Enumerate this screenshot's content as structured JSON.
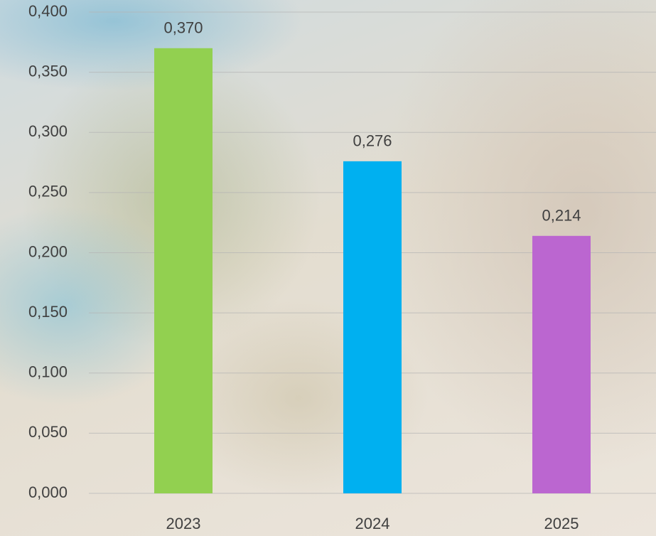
{
  "chart_data": {
    "type": "bar",
    "categories": [
      "2023",
      "2024",
      "2025"
    ],
    "values": [
      0.37,
      0.276,
      0.214
    ],
    "value_labels": [
      "0,370",
      "0,276",
      "0,214"
    ],
    "colors": [
      "#92d050",
      "#00b0f0",
      "#bb66d0"
    ],
    "ylim": [
      0,
      0.4
    ],
    "yticks": [
      {
        "value": 0,
        "label": "0,000"
      },
      {
        "value": 0.05,
        "label": "0,050"
      },
      {
        "value": 0.1,
        "label": "0,100"
      },
      {
        "value": 0.15,
        "label": "0,150"
      },
      {
        "value": 0.2,
        "label": "0,200"
      },
      {
        "value": 0.25,
        "label": "0,250"
      },
      {
        "value": 0.3,
        "label": "0,300"
      },
      {
        "value": 0.35,
        "label": "0,350"
      },
      {
        "value": 0.4,
        "label": "0,400"
      }
    ],
    "grid": true
  }
}
